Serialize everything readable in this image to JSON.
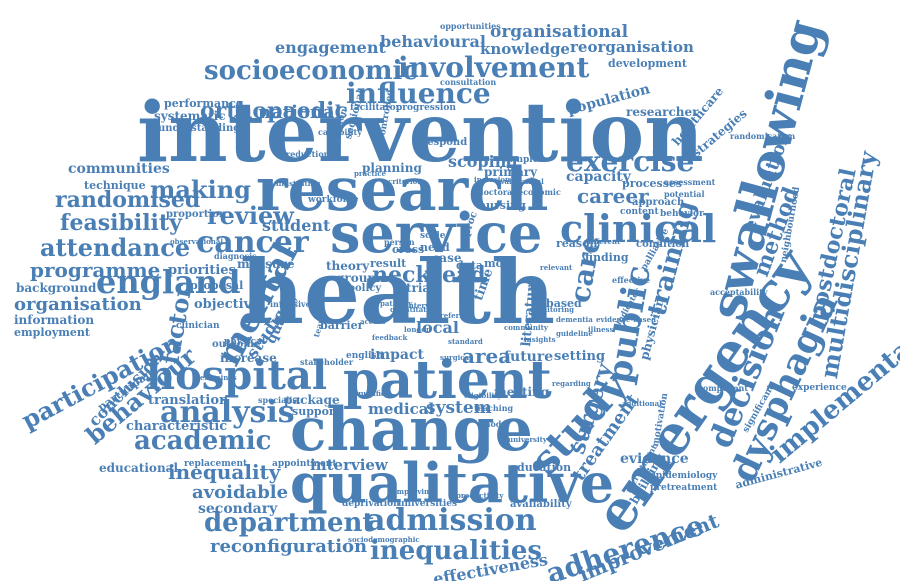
{
  "color": "#4a7fb5",
  "words": [
    "health",
    "intervention",
    "research",
    "service",
    "change",
    "patient",
    "qualitative",
    "emergency",
    "swallowing",
    "hospital",
    "study",
    "clinical",
    "dysphagia",
    "public",
    "adherence",
    "decision",
    "admission",
    "involvement",
    "socioeconomic",
    "influence",
    "exercise",
    "cancer",
    "england",
    "mental",
    "analysis",
    "academic",
    "department",
    "inequalities",
    "care",
    "training",
    "implementation",
    "multidisciplinary",
    "postdoctoral",
    "making",
    "review",
    "attendance",
    "feasibility",
    "randomised",
    "programme",
    "organisation",
    "participation",
    "behaviour",
    "orthopaedic",
    "engagement",
    "behavioural",
    "knowledge",
    "organisational",
    "reorganisation",
    "national",
    "population",
    "career",
    "capacity",
    "evaluation",
    "method",
    "improvement",
    "surgery",
    "treatment",
    "evidence",
    "inequality",
    "avoidable",
    "secondary",
    "reconfiguration",
    "effectiveness",
    "interview",
    "system",
    "medical",
    "neck",
    "head",
    "area",
    "impact",
    "future",
    "setting",
    "local",
    "student",
    "scoping",
    "planning",
    "communities",
    "technique",
    "factor",
    "conclusion",
    "characteristic",
    "educational",
    "translation",
    "package",
    "support",
    "studies",
    "quality",
    "priorities",
    "objective",
    "background",
    "information",
    "employment",
    "participant",
    "performance",
    "systematic",
    "understanding",
    "researcher",
    "development",
    "healthcare",
    "strategies",
    "processes",
    "approach",
    "content",
    "behavior",
    "physician",
    "administrative",
    "building",
    "pretreatment",
    "epidemiology",
    "education",
    "universities",
    "deprivation",
    "availability",
    "meeting",
    "increase",
    "outcome",
    "proposal",
    "proportion",
    "measure",
    "barrier",
    "theory",
    "result",
    "group",
    "trial",
    "time",
    "data",
    "case",
    "need",
    "cross",
    "proc",
    "reason",
    "finding",
    "condition",
    "literature",
    "based",
    "primary",
    "complex",
    "respond",
    "nursing",
    "doctoral",
    "economic",
    "physical",
    "clinician",
    "workforce",
    "facilitator",
    "progression",
    "consultation",
    "opportunities",
    "assessment",
    "potential",
    "randomisation",
    "acceptability",
    "palliative",
    "neighbourhood",
    "experience",
    "significant",
    "component",
    "motivation",
    "appointment",
    "replacement",
    "english",
    "policy",
    "most",
    "teaching",
    "model",
    "stakeholder",
    "sectional",
    "controlled",
    "variation",
    "capability",
    "reduction",
    "diagnosis",
    "intensive",
    "effective",
    "scale",
    "person",
    "sociodemographic",
    "specialist",
    "examines",
    "illustrating",
    "observational",
    "qualified",
    "recruitment",
    "productivity",
    "improving",
    "university",
    "indicator",
    "interval",
    "relevant",
    "different",
    "substantial",
    "inclusion",
    "criterion",
    "illness",
    "evidence-based",
    "additional",
    "quantitative",
    "practice",
    "regarding",
    "eligibility",
    "surgical",
    "london",
    "team",
    "community",
    "insights",
    "standard",
    "dementia",
    "guideline",
    "referral",
    "access",
    "pathway",
    "monitoring",
    "feedback",
    "burden",
    "symptom"
  ]
}
